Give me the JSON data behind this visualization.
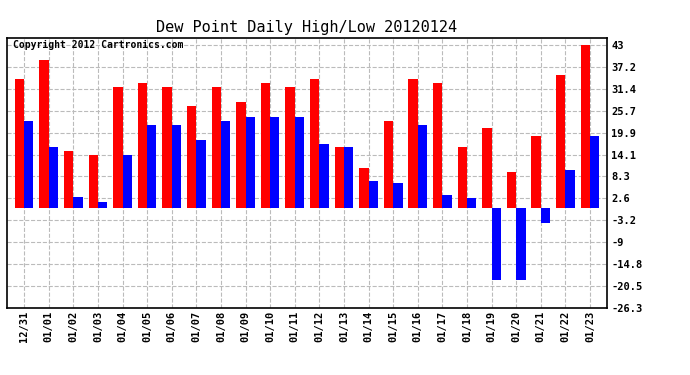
{
  "title": "Dew Point Daily High/Low 20120124",
  "copyright": "Copyright 2012 Cartronics.com",
  "labels": [
    "12/31",
    "01/01",
    "01/02",
    "01/03",
    "01/04",
    "01/05",
    "01/06",
    "01/07",
    "01/08",
    "01/09",
    "01/10",
    "01/11",
    "01/12",
    "01/13",
    "01/14",
    "01/15",
    "01/16",
    "01/17",
    "01/18",
    "01/19",
    "01/20",
    "01/21",
    "01/22",
    "01/23"
  ],
  "highs": [
    34.0,
    39.0,
    15.0,
    14.0,
    32.0,
    33.0,
    32.0,
    27.0,
    32.0,
    28.0,
    33.0,
    32.0,
    34.0,
    16.0,
    10.5,
    23.0,
    34.0,
    33.0,
    16.0,
    21.0,
    9.5,
    19.0,
    35.0,
    43.0
  ],
  "lows": [
    23.0,
    16.0,
    3.0,
    1.5,
    14.0,
    22.0,
    22.0,
    18.0,
    23.0,
    24.0,
    24.0,
    24.0,
    17.0,
    16.0,
    7.0,
    6.5,
    22.0,
    3.5,
    2.5,
    -19.0,
    -19.0,
    -4.0,
    10.0,
    19.0
  ],
  "high_color": "#ff0000",
  "low_color": "#0000ff",
  "background_color": "#ffffff",
  "grid_color": "#bbbbbb",
  "yticks": [
    43.0,
    37.2,
    31.4,
    25.7,
    19.9,
    14.1,
    8.3,
    2.6,
    -3.2,
    -9.0,
    -14.8,
    -20.5,
    -26.3
  ],
  "ylim": [
    -26.3,
    45.0
  ],
  "bar_width": 0.38,
  "title_fontsize": 11,
  "tick_fontsize": 7.5,
  "copyright_fontsize": 7
}
